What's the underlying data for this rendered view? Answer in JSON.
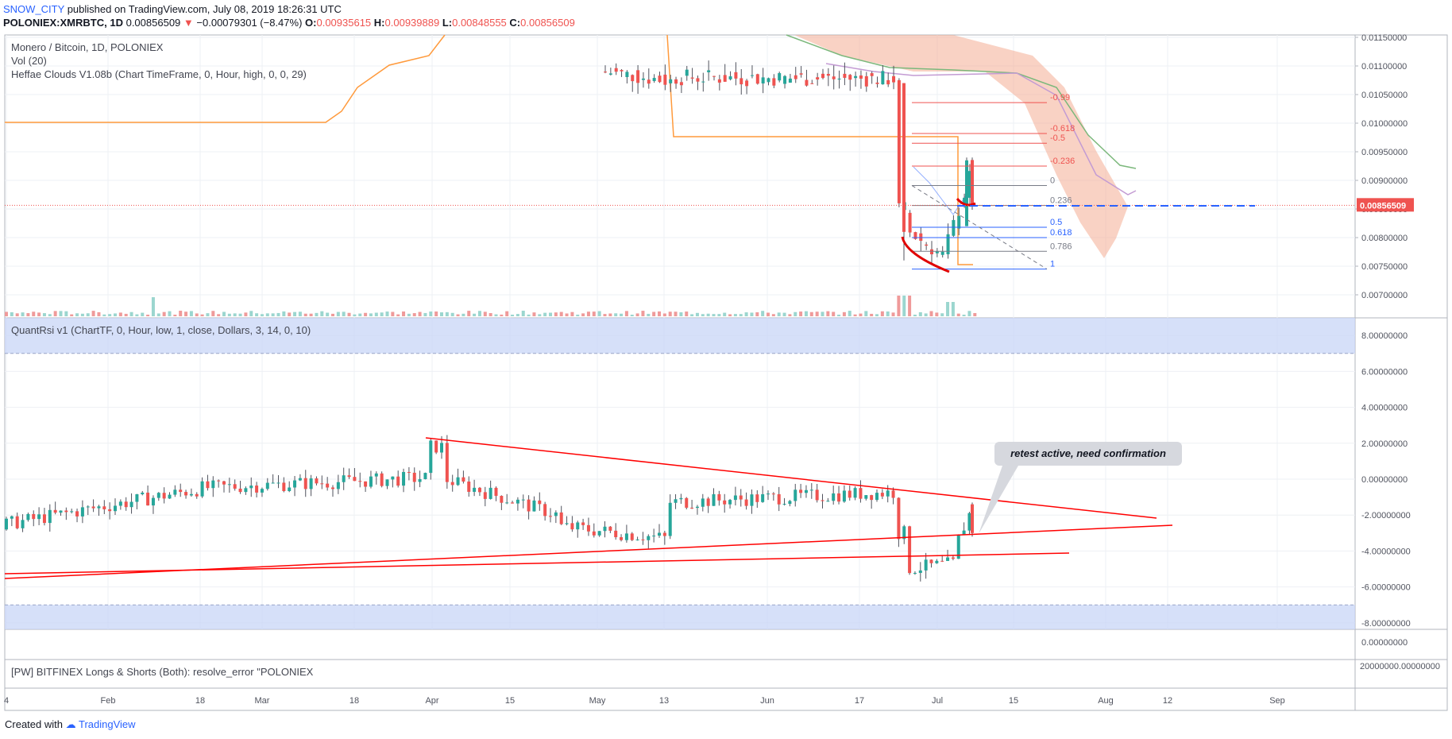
{
  "header": {
    "user": "SNOW_CITY",
    "published": "published on TradingView.com, July 08, 2019 18:26:31 UTC",
    "symbol": "POLONIEX:XMRBTC, 1D",
    "last": "0.00856509",
    "change_arrow": "▼",
    "change": "−0.00079301 (−8.47%)",
    "o_label": "O:",
    "o_val": "0.00935615",
    "h_label": "H:",
    "h_val": "0.00939889",
    "l_label": "L:",
    "l_val": "0.00848555",
    "c_label": "C:",
    "c_val": "0.00856509"
  },
  "legend": {
    "main_title": "Monero / Bitcoin, 1D, POLONIEX",
    "vol": "Vol (20)",
    "clouds": "Heffae Clouds V1.08b (Chart TimeFrame, 0, Hour, high, 0, 0, 29)",
    "rsi": "QuantRsi v1 (ChartTF, 0, Hour, low, 1, close, Dollars, 3, 14, 0, 10)",
    "longs": "[PW] BITFINEX Longs & Shorts (Both): resolve_error \"POLONIEX"
  },
  "annotation": "retest active, need confirmation",
  "footer": {
    "created": "Created with",
    "brand": "TradingView"
  },
  "colors": {
    "up": "#26a69a",
    "down": "#ef5350",
    "fib_red": "#ef5350",
    "fib_blue": "#2962ff",
    "trend": "#ff0000",
    "band": "#c8d6f7"
  },
  "chart_data": [
    {
      "type": "candlestick",
      "title": "Monero / Bitcoin, 1D, POLONIEX",
      "price_axis_ticks": [
        "0.01150000",
        "0.01100000",
        "0.01050000",
        "0.01000000",
        "0.00950000",
        "0.00900000",
        "0.00850000",
        "0.00800000",
        "0.00750000",
        "0.00700000"
      ],
      "ylim": [
        0.0066,
        0.0116
      ],
      "last_price_label": "0.00856509",
      "last_price": 0.00856509,
      "fib_levels": [
        {
          "label": "-0.99",
          "value": 0.01036
        },
        {
          "label": "-0.618",
          "value": 0.00982
        },
        {
          "label": "-0.5",
          "value": 0.00965
        },
        {
          "label": "-0.236",
          "value": 0.00925
        },
        {
          "label": "0",
          "value": 0.00891
        },
        {
          "label": "0.236",
          "value": 0.00856
        },
        {
          "label": "0.5",
          "value": 0.00818
        },
        {
          "label": "0.618",
          "value": 0.008
        },
        {
          "label": "0.786",
          "value": 0.00776
        },
        {
          "label": "1",
          "value": 0.00745
        }
      ],
      "candles_recent": [
        {
          "date": "May",
          "o": 0.0111,
          "h": 0.0115,
          "l": 0.0104,
          "c": 0.0106
        },
        {
          "date": "May 13",
          "o": 0.0106,
          "h": 0.011,
          "l": 0.01,
          "c": 0.0114
        },
        {
          "date": "Jun",
          "o": 0.0109,
          "h": 0.0112,
          "l": 0.0106,
          "c": 0.0108
        },
        {
          "date": "Jun 17",
          "o": 0.0108,
          "h": 0.0111,
          "l": 0.0104,
          "c": 0.0106
        },
        {
          "date": "Jun 24",
          "o": 0.0106,
          "h": 0.0107,
          "l": 0.0076,
          "c": 0.0084
        },
        {
          "date": "Jul",
          "o": 0.0084,
          "h": 0.0088,
          "l": 0.0074,
          "c": 0.0078
        },
        {
          "date": "Jul 7",
          "o": 0.0082,
          "h": 0.0094,
          "l": 0.0084,
          "c": 0.00935
        },
        {
          "date": "Jul 8",
          "o": 0.00935615,
          "h": 0.00939889,
          "l": 0.00848555,
          "c": 0.00856509
        }
      ]
    },
    {
      "type": "candlestick",
      "title": "QuantRsi v1 (ChartTF, 0, Hour, low, 1, close, Dollars, 3, 14, 0, 10)",
      "axis_ticks": [
        "8.00000000",
        "6.00000000",
        "4.00000000",
        "2.00000000",
        "0.00000000",
        "-2.00000000",
        "-4.00000000",
        "-6.00000000",
        "-8.00000000"
      ],
      "ylim": [
        -8.5,
        8.5
      ],
      "bands": [
        [
          7,
          9
        ],
        [
          -9,
          -7
        ]
      ]
    },
    {
      "type": "line",
      "title": "[PW] BITFINEX Longs & Shorts (Both): resolve_error \"POLONIEX",
      "axis_ticks": [
        "0.00000000"
      ]
    },
    {
      "type": "line",
      "axis_ticks": [
        "20000000.00000000"
      ]
    }
  ],
  "time_axis": [
    "4",
    "Feb",
    "18",
    "Mar",
    "18",
    "Apr",
    "15",
    "May",
    "13",
    "Jun",
    "17",
    "Jul",
    "15",
    "Aug",
    "12",
    "Sep"
  ]
}
